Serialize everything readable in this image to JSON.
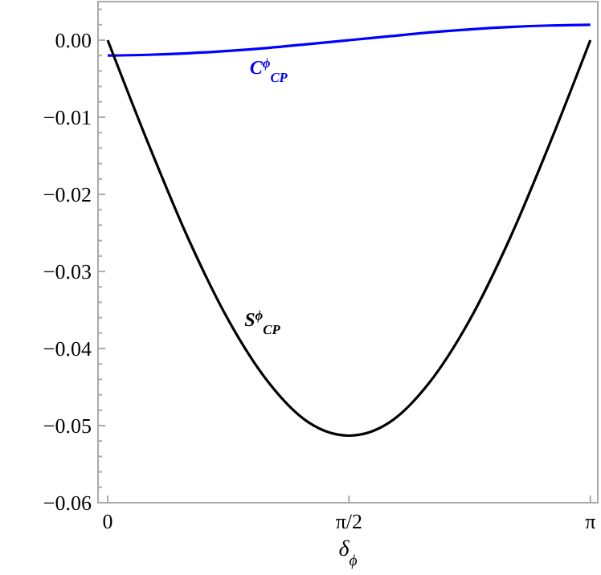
{
  "chart_data": {
    "type": "line",
    "xlabel": "δ$_{ϕ}$",
    "x": [
      0,
      0.2618,
      0.5236,
      0.7854,
      1.0472,
      1.309,
      1.5708,
      1.8326,
      2.0944,
      2.3562,
      2.618,
      2.8798,
      3.1416
    ],
    "series": [
      {
        "name": "C$^{ϕ}$$_{CP}$",
        "color": "#0000ff",
        "values": [
          -0.002,
          -0.0019,
          -0.0017,
          -0.0014,
          -0.001,
          -0.0005,
          0,
          0.0005,
          0.001,
          0.0014,
          0.0017,
          0.0019,
          0.002
        ]
      },
      {
        "name": "S$^{ϕ}$$_{CP}$",
        "color": "#000000",
        "values": [
          0,
          -0.0133,
          -0.0257,
          -0.0363,
          -0.0444,
          -0.0496,
          -0.0513,
          -0.0496,
          -0.0444,
          -0.0363,
          -0.0257,
          -0.0133,
          0
        ]
      }
    ],
    "xlim": [
      -0.063,
      3.19
    ],
    "ylim": [
      -0.06,
      0.005
    ],
    "xticks": [
      0,
      {
        "value": 1.5708,
        "label": "π/2"
      },
      {
        "value": 3.1416,
        "label": "π"
      }
    ],
    "yticks": [
      {
        "value": 0,
        "label": "0.00"
      },
      {
        "value": -0.01,
        "label": "−0.01"
      },
      {
        "value": -0.02,
        "label": "−0.02"
      },
      {
        "value": -0.03,
        "label": "−0.03"
      },
      {
        "value": -0.04,
        "label": "−0.04"
      },
      {
        "value": -0.05,
        "label": "−0.05"
      },
      {
        "value": -0.06,
        "label": "−0.06"
      },
      {
        "value": 0.004,
        "label": null
      },
      {
        "value": 0.002,
        "label": null
      },
      {
        "value": -0.002,
        "label": null
      },
      {
        "value": -0.004,
        "label": null
      },
      {
        "value": -0.006,
        "label": null
      },
      {
        "value": -0.008,
        "label": null
      },
      {
        "value": -0.012,
        "label": null
      },
      {
        "value": -0.014,
        "label": null
      },
      {
        "value": -0.016,
        "label": null
      },
      {
        "value": -0.018,
        "label": null
      },
      {
        "value": -0.022,
        "label": null
      },
      {
        "value": -0.024,
        "label": null
      },
      {
        "value": -0.026,
        "label": null
      },
      {
        "value": -0.028,
        "label": null
      },
      {
        "value": -0.032,
        "label": null
      },
      {
        "value": -0.034,
        "label": null
      },
      {
        "value": -0.036,
        "label": null
      },
      {
        "value": -0.038,
        "label": null
      },
      {
        "value": -0.042,
        "label": null
      },
      {
        "value": -0.044,
        "label": null
      },
      {
        "value": -0.046,
        "label": null
      },
      {
        "value": -0.048,
        "label": null
      },
      {
        "value": -0.052,
        "label": null
      },
      {
        "value": -0.054,
        "label": null
      },
      {
        "value": -0.056,
        "label": null
      },
      {
        "value": -0.058,
        "label": null
      }
    ],
    "grid": false,
    "marker": "none",
    "line_style": "solid"
  }
}
